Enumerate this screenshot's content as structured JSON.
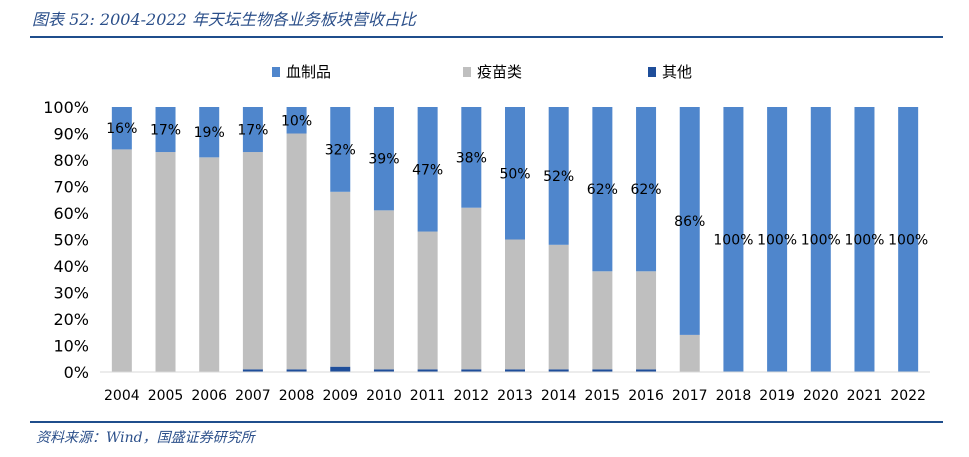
{
  "header": {
    "title": "图表 52: 2004-2022 年天坛生物各业务板块营收占比"
  },
  "footer": {
    "source": "资料来源：Wind，国盛证券研究所"
  },
  "colors": {
    "blood": "#4f86cc",
    "vaccine": "#bfbfbf",
    "other": "#1f4e9a",
    "rule": "#1f4e8c"
  },
  "chart_data": {
    "type": "bar",
    "stacked": true,
    "categories": [
      "2004",
      "2005",
      "2006",
      "2007",
      "2008",
      "2009",
      "2010",
      "2011",
      "2012",
      "2013",
      "2014",
      "2015",
      "2016",
      "2017",
      "2018",
      "2019",
      "2020",
      "2021",
      "2022"
    ],
    "series": [
      {
        "name": "其他",
        "values": [
          0,
          0,
          0,
          1,
          1,
          2,
          1,
          1,
          1,
          1,
          1,
          1,
          1,
          0,
          0,
          0,
          0,
          0,
          0
        ]
      },
      {
        "name": "疫苗类",
        "values": [
          84,
          83,
          81,
          82,
          89,
          66,
          60,
          52,
          61,
          49,
          47,
          37,
          37,
          14,
          0,
          0,
          0,
          0,
          0
        ]
      },
      {
        "name": "血制品",
        "values": [
          16,
          17,
          19,
          17,
          10,
          32,
          39,
          47,
          38,
          50,
          52,
          62,
          62,
          86,
          100,
          100,
          100,
          100,
          100
        ]
      }
    ],
    "data_labels": [
      "16%",
      "17%",
      "19%",
      "17%",
      "10%",
      "32%",
      "39%",
      "47%",
      "38%",
      "50%",
      "52%",
      "62%",
      "62%",
      "86%",
      "100%",
      "100%",
      "100%",
      "100%",
      "100%"
    ],
    "y_ticks": [
      "0%",
      "10%",
      "20%",
      "30%",
      "40%",
      "50%",
      "60%",
      "70%",
      "80%",
      "90%",
      "100%"
    ],
    "ylim": [
      0,
      100
    ],
    "legend_position": "top",
    "legend": [
      "血制品",
      "疫苗类",
      "其他"
    ],
    "grid": false
  }
}
